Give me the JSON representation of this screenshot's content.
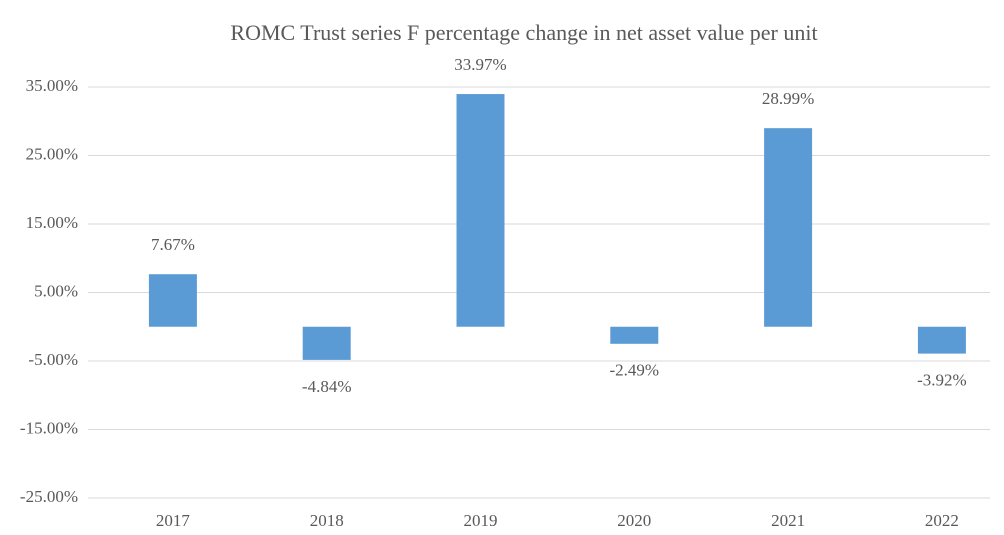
{
  "chart_data": {
    "type": "bar",
    "title": "ROMC Trust series F percentage change in net asset value per unit",
    "categories": [
      "2017",
      "2018",
      "2019",
      "2020",
      "2021",
      "2022"
    ],
    "values": [
      7.67,
      -4.84,
      33.97,
      -2.49,
      28.99,
      -3.92
    ],
    "value_labels": [
      "7.67%",
      "-4.84%",
      "33.97%",
      "-2.49%",
      "28.99%",
      "-3.92%"
    ],
    "color": "#5b9bd5",
    "ylim": [
      -25,
      35
    ],
    "yticks": [
      {
        "value": -25,
        "label": "-25.00%"
      },
      {
        "value": -15,
        "label": "-15.00%"
      },
      {
        "value": -5,
        "label": "-5.00%"
      },
      {
        "value": 5,
        "label": "5.00%"
      },
      {
        "value": 15,
        "label": "15.00%"
      },
      {
        "value": 25,
        "label": "25.00%"
      },
      {
        "value": 35,
        "label": "35.00%"
      }
    ],
    "grid": true
  }
}
